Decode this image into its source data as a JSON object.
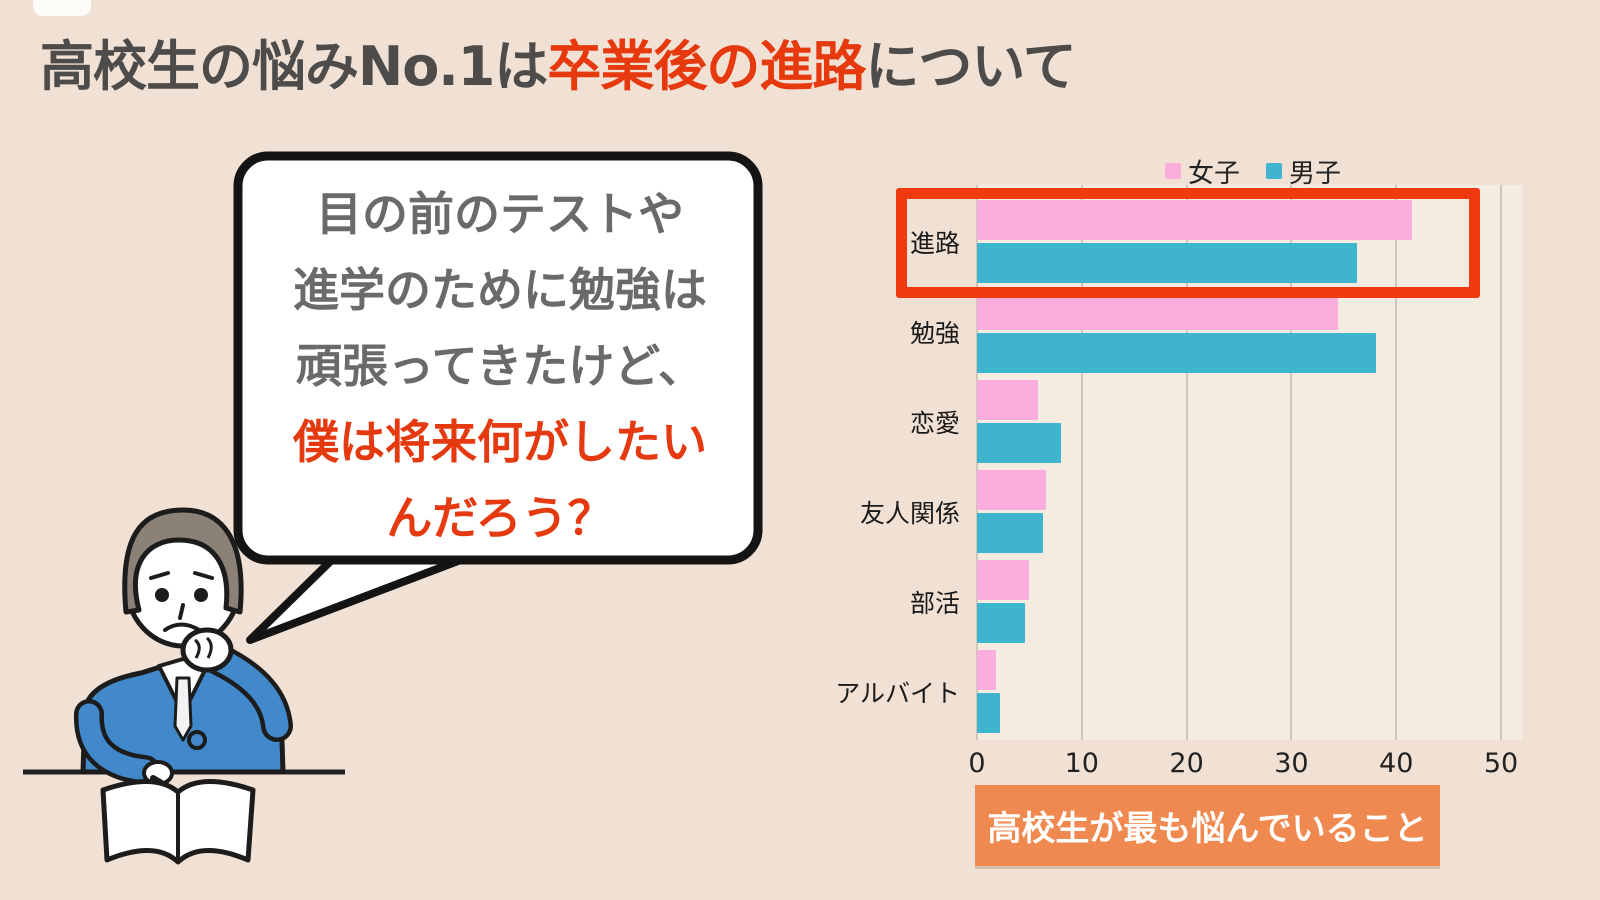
{
  "title": {
    "prefix": "高校生の悩みNo.1は",
    "highlight": "卒業後の進路",
    "suffix": "について"
  },
  "speech_bubble": {
    "gray_lines": [
      "目の前のテストや",
      "進学のために勉強は",
      "頑張ってきたけど、"
    ],
    "red_lines": [
      "僕は将来何がしたい",
      "んだろう？"
    ]
  },
  "chart_data": {
    "type": "bar",
    "orientation": "horizontal",
    "categories": [
      "進路",
      "勉強",
      "恋愛",
      "友人関係",
      "部活",
      "アルバイト"
    ],
    "series": [
      {
        "name": "女子",
        "color": "#fbaedd",
        "values": [
          41.5,
          34.4,
          5.8,
          6.6,
          5.0,
          1.8
        ]
      },
      {
        "name": "男子",
        "color": "#3fb4cf",
        "values": [
          36.3,
          38.1,
          8.0,
          6.3,
          4.6,
          2.2
        ]
      }
    ],
    "x_ticks": [
      0,
      10,
      20,
      30,
      40,
      50
    ],
    "xlim": [
      0,
      52
    ],
    "grid": "vertical",
    "legend_position": "top",
    "highlighted_category": "進路",
    "highlight_color": "#ee3a0e"
  },
  "caption": {
    "text": "高校生が最も悩んでいること",
    "bg_color": "#f0894f"
  },
  "colors": {
    "page_bg": "#f1e1d4",
    "plot_bg": "#f5ece1",
    "title_text": "#4e4c4a",
    "accent_red": "#e6390e",
    "bubble_text_gray": "#6a6a69",
    "girls_pink": "#fbaedd",
    "boys_teal": "#3fb4cf",
    "highlight_box_red": "#ee3a0e",
    "caption_orange": "#f0894f"
  }
}
